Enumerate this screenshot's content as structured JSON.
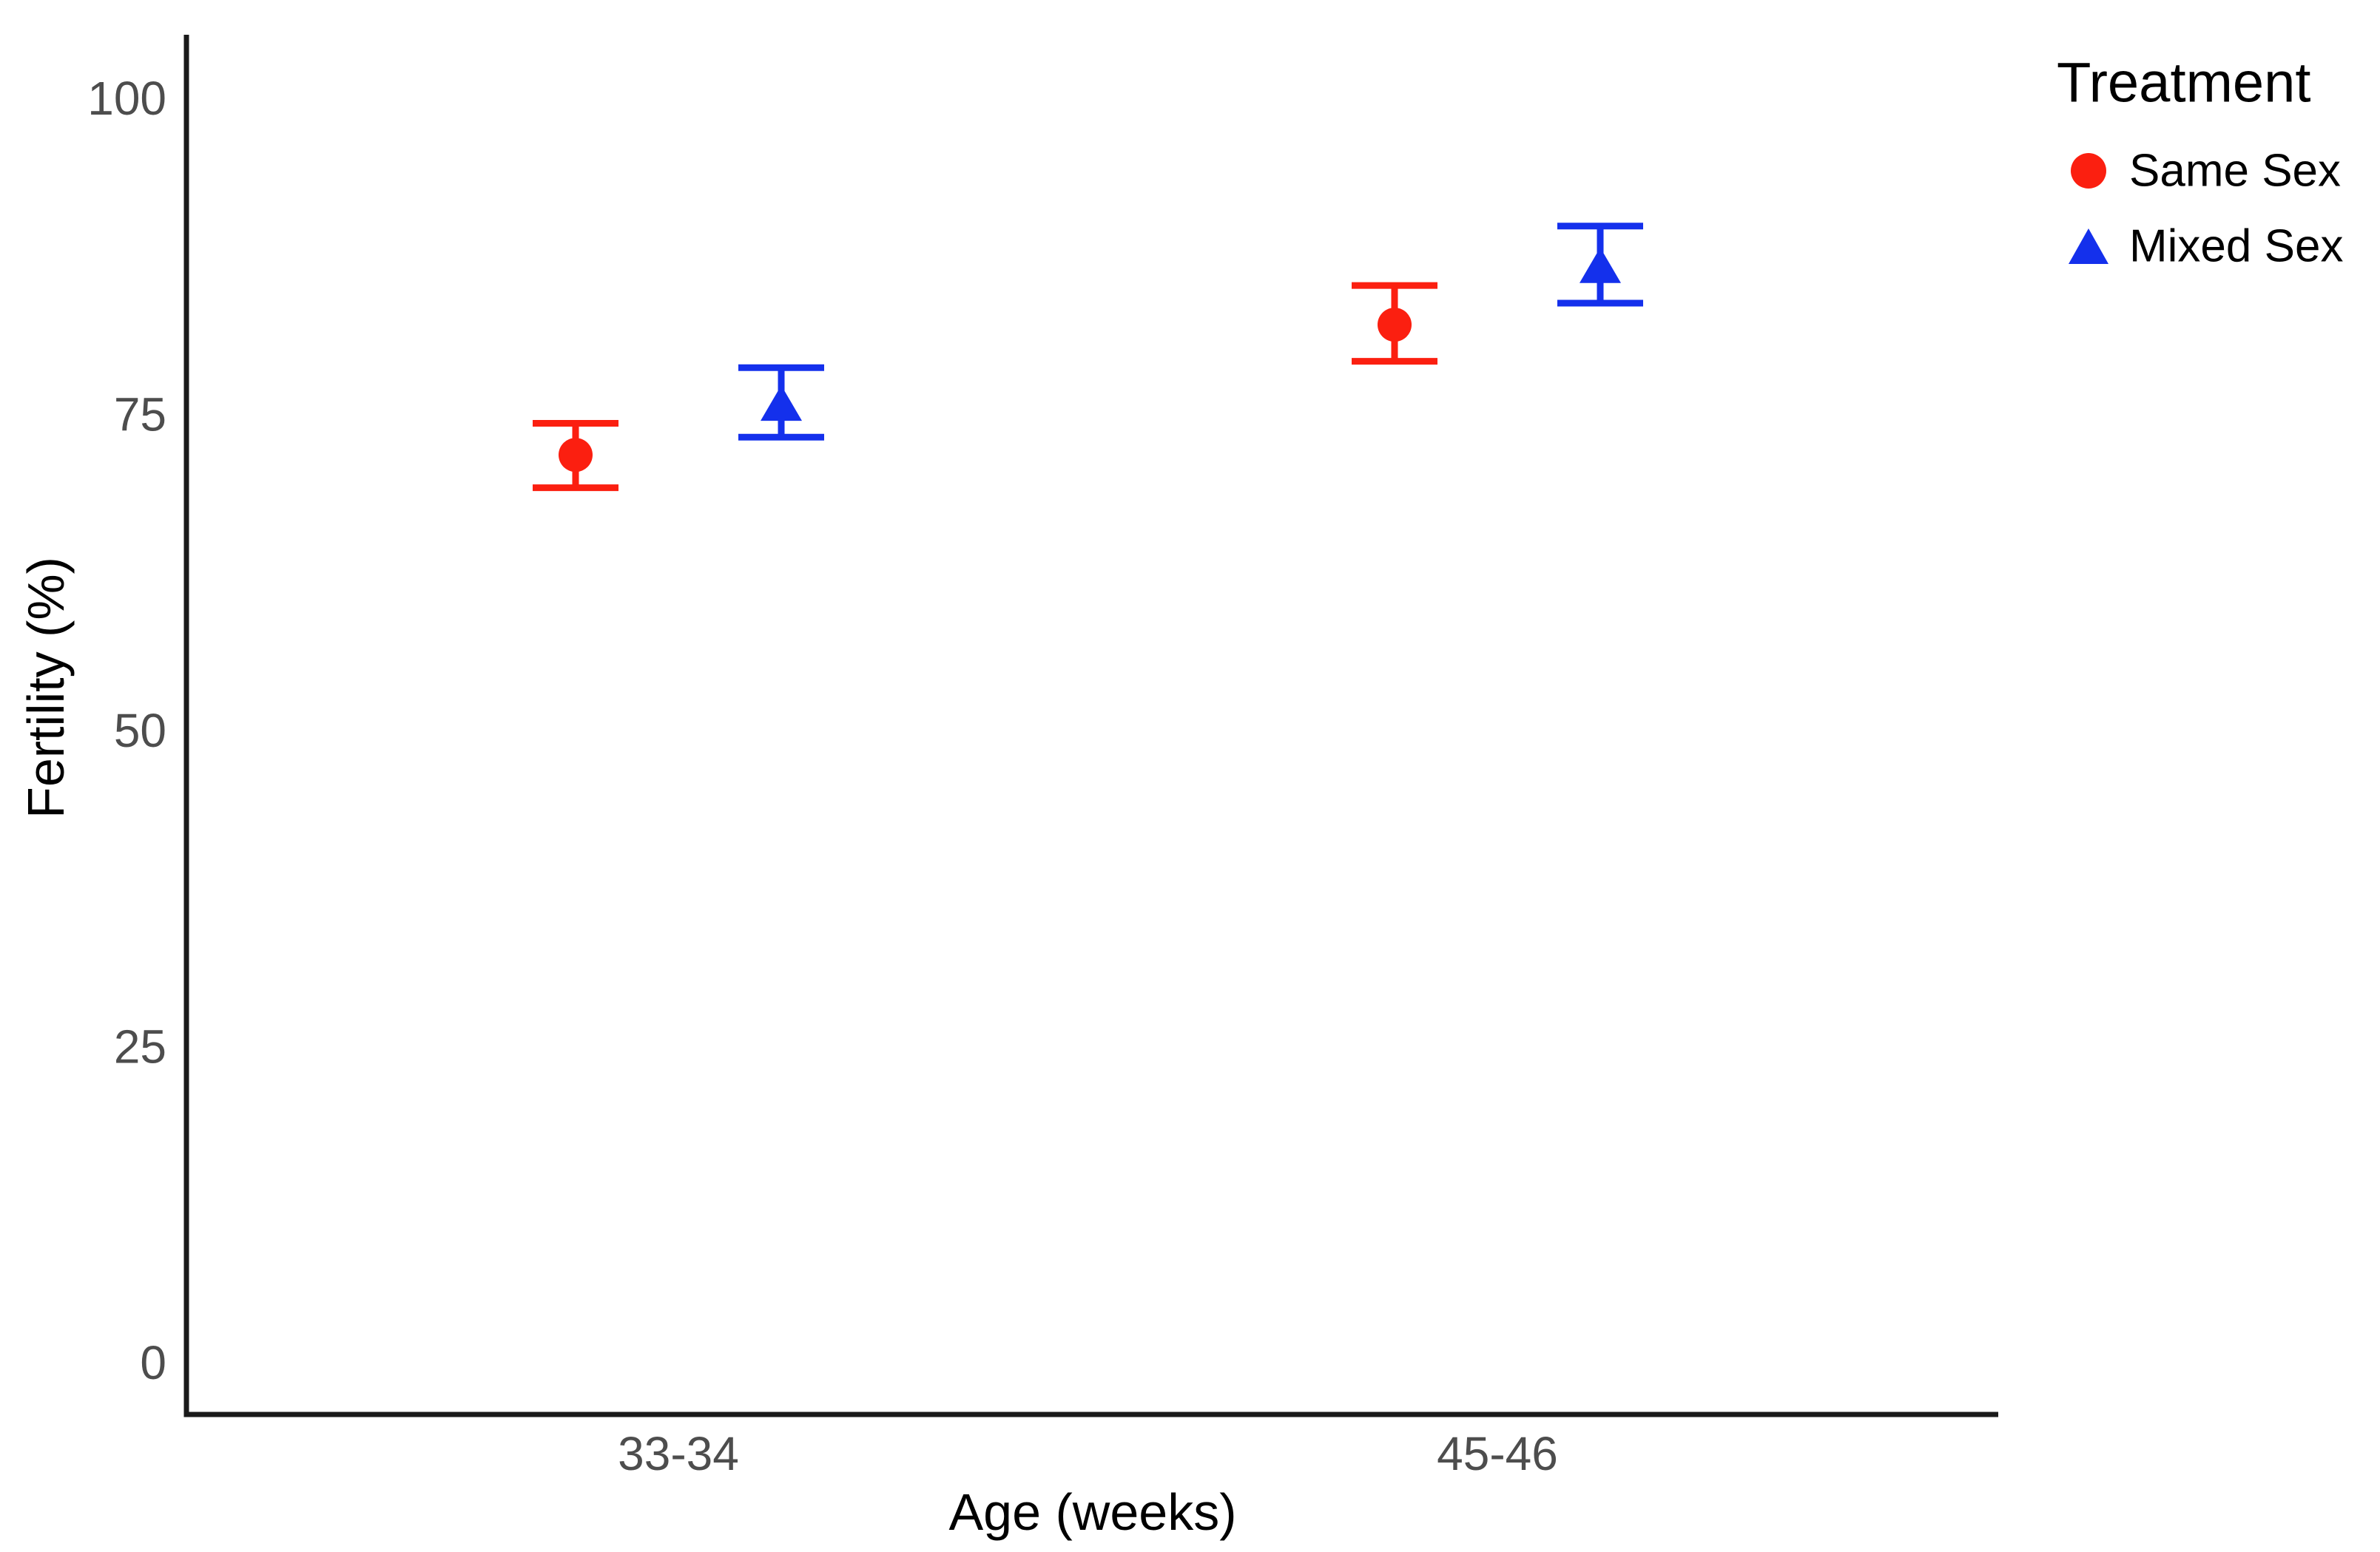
{
  "chart_data": {
    "type": "scatter",
    "title": "",
    "xlabel": "Age (weeks)",
    "ylabel": "Fertility (%)",
    "categories": [
      "33-34",
      "45-46"
    ],
    "ylim": [
      0,
      100
    ],
    "yticks": [
      0,
      25,
      50,
      75,
      100
    ],
    "grid": false,
    "legend_position": "right-top",
    "axis_line_color": "#1a1a1a",
    "tick_label_color": "#4d4d4d",
    "series": [
      {
        "name": "Same Sex",
        "marker": "circle",
        "color": "#fb1f10",
        "values": [
          71.8,
          82.1
        ],
        "ci_low": [
          69.2,
          79.2
        ],
        "ci_high": [
          74.3,
          85.2
        ]
      },
      {
        "name": "Mixed Sex",
        "marker": "triangle",
        "color": "#1430ec",
        "values": [
          75.9,
          86.8
        ],
        "ci_low": [
          73.2,
          83.8
        ],
        "ci_high": [
          78.7,
          89.9
        ]
      }
    ]
  },
  "legend": {
    "title": "Treatment",
    "items": [
      {
        "label": "Same Sex",
        "marker": "circle",
        "color": "#fb1f10"
      },
      {
        "label": "Mixed Sex",
        "marker": "triangle",
        "color": "#1430ec"
      }
    ]
  }
}
